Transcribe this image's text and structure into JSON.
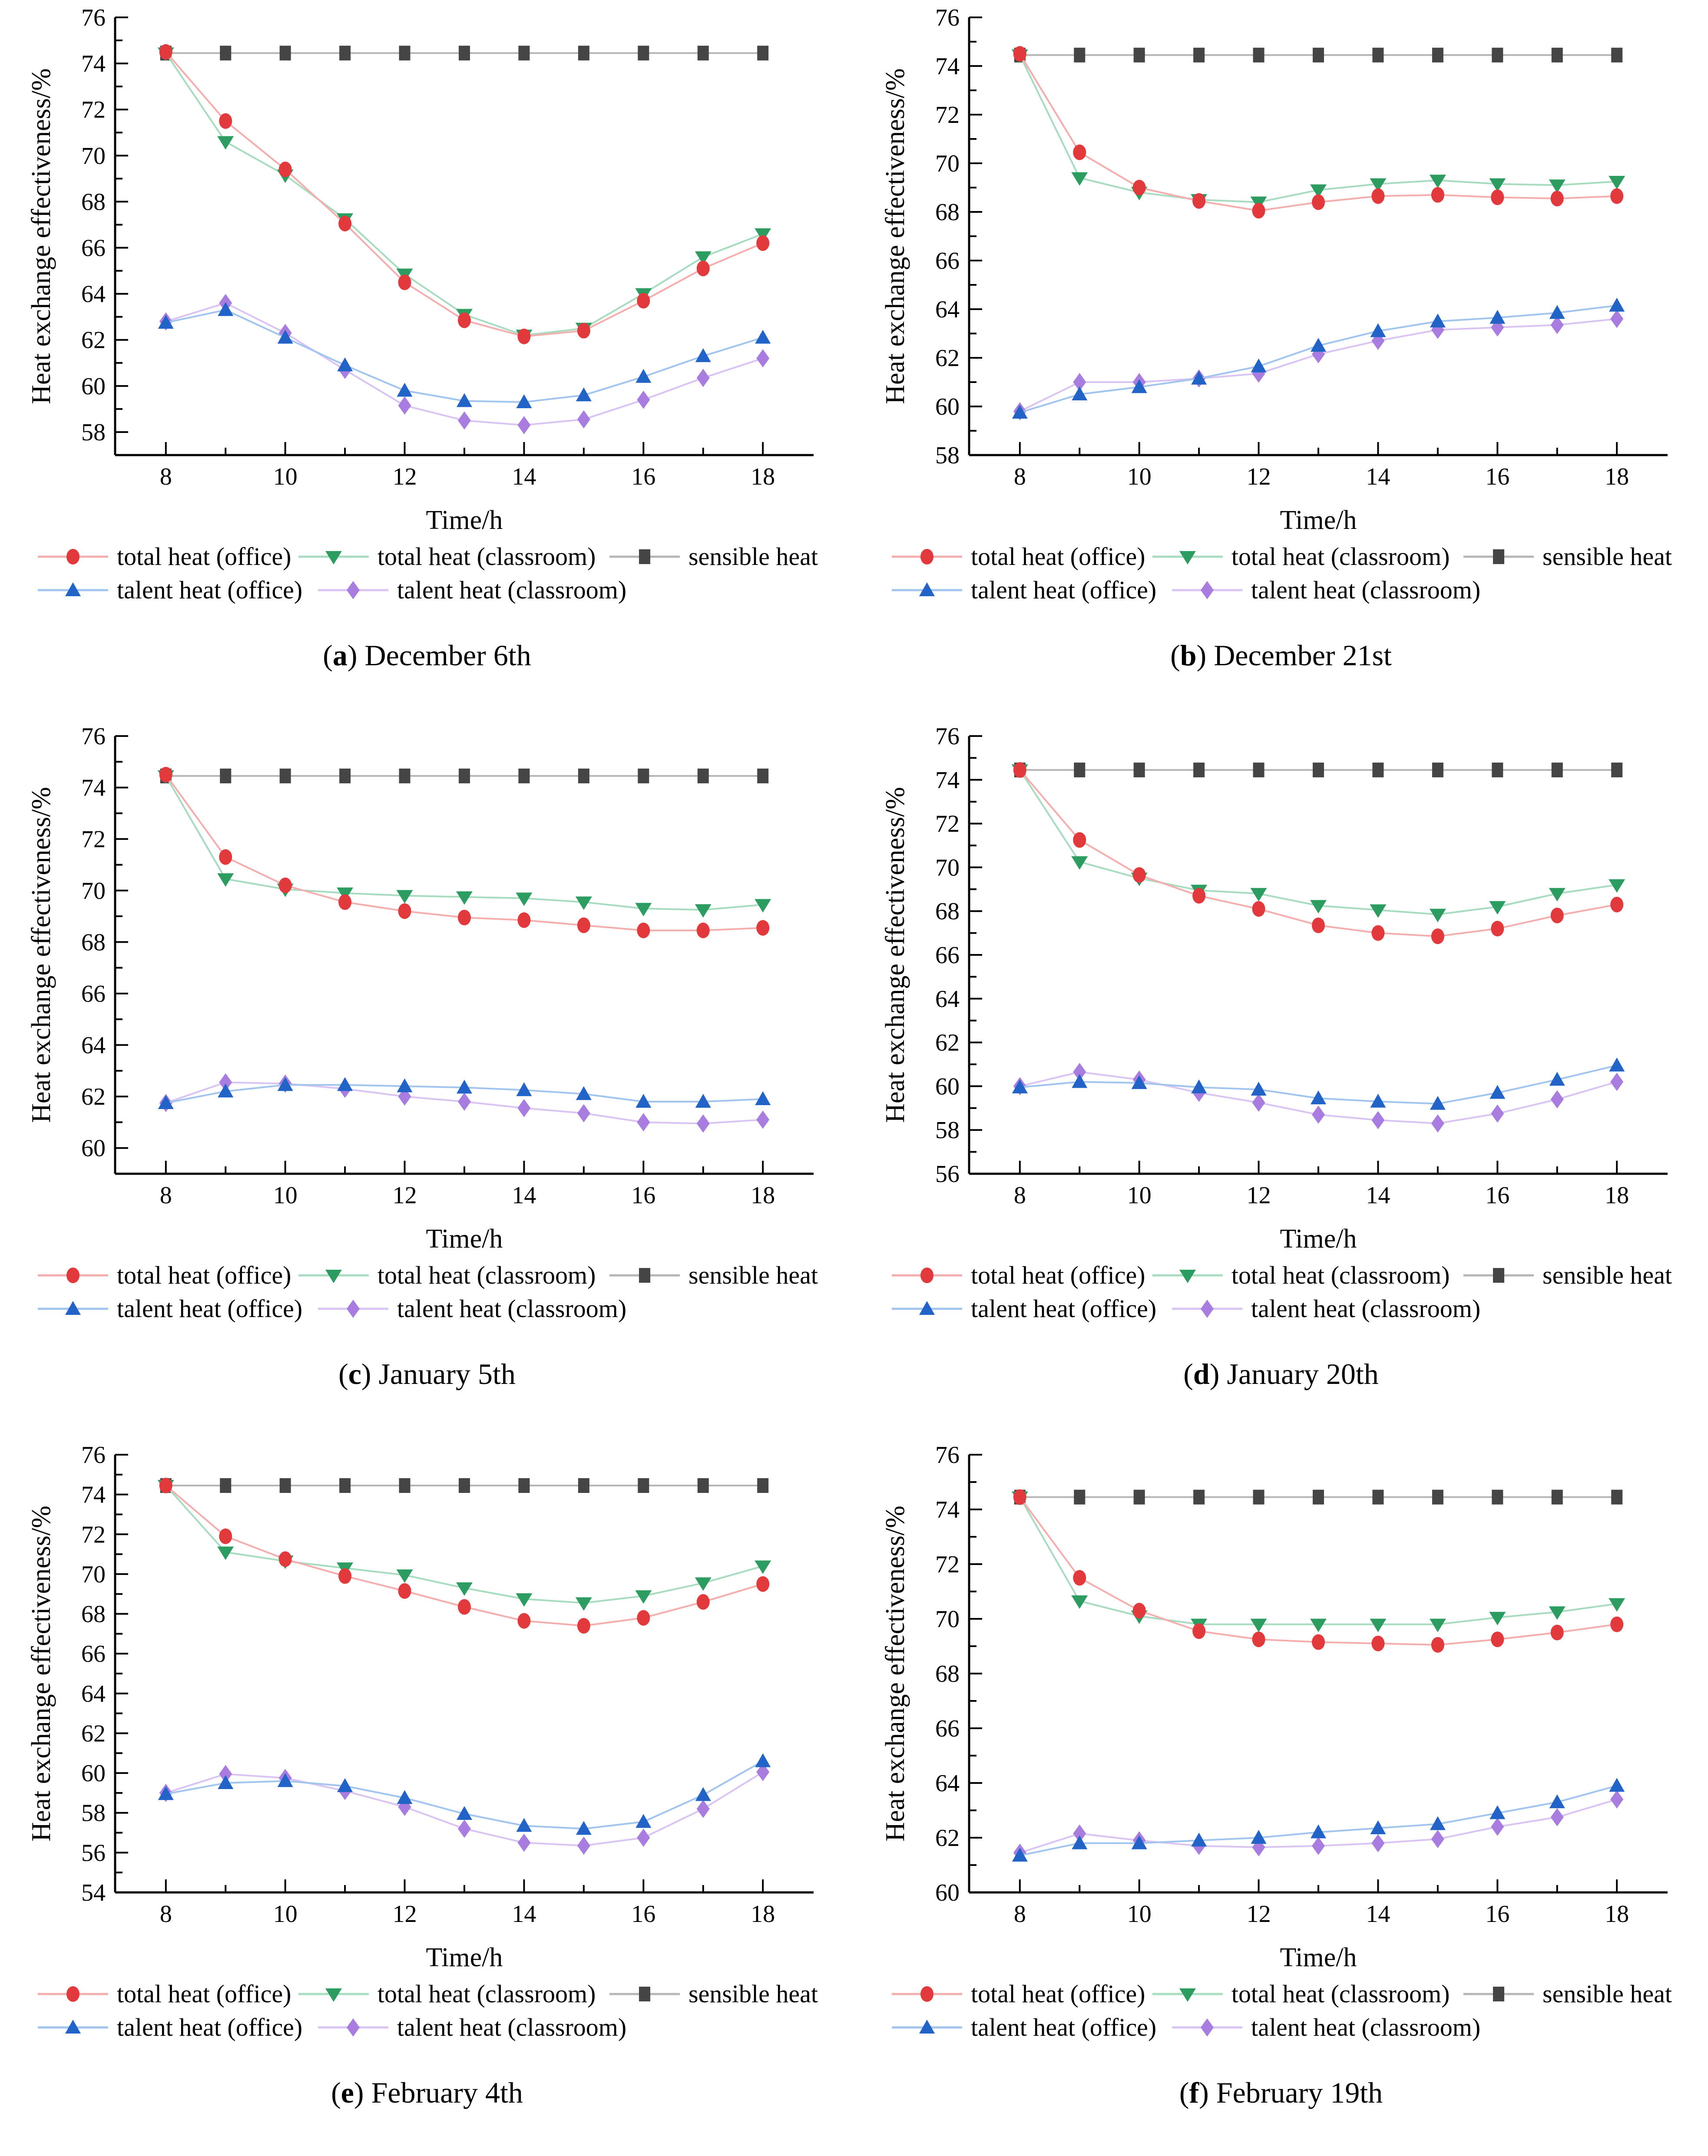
{
  "figure": {
    "xlabel": "Time/h",
    "ylabel": "Heat exchange effectiveness/%",
    "background": "#ffffff",
    "axis_color": "#000000",
    "legend_position": "below-each-chart",
    "legend": [
      {
        "label": "total heat (office)",
        "marker": "circle",
        "marker_color": "#e23a3c",
        "line_color": "#f5aeae"
      },
      {
        "label": "total heat (classroom)",
        "marker": "triangle-down",
        "marker_color": "#2c9c60",
        "line_color": "#a8dcc0"
      },
      {
        "label": "sensible heat",
        "marker": "square",
        "marker_color": "#454545",
        "line_color": "#b5b5b5"
      },
      {
        "label": "talent heat (office)",
        "marker": "triangle-up",
        "marker_color": "#2263c8",
        "line_color": "#a2c5ef"
      },
      {
        "label": "talent heat (classroom)",
        "marker": "diamond",
        "marker_color": "#a97ce0",
        "line_color": "#d9c4f4"
      }
    ]
  },
  "chart_data": [
    {
      "type": "line",
      "caption_letter": "a",
      "caption": "December 6th",
      "xlabel": "Time/h",
      "ylabel": "Heat exchange effectiveness/%",
      "x": [
        8,
        9,
        10,
        11,
        12,
        13,
        14,
        15,
        16,
        17,
        18
      ],
      "xticks": [
        8,
        10,
        12,
        14,
        16,
        18
      ],
      "ylim": [
        57,
        76
      ],
      "grid": false,
      "series": [
        {
          "name": "total heat (office)",
          "values": [
            74.5,
            71.5,
            69.4,
            67.05,
            64.5,
            62.85,
            62.15,
            62.4,
            63.7,
            65.1,
            66.2
          ]
        },
        {
          "name": "total heat (classroom)",
          "values": [
            74.45,
            70.6,
            69.15,
            67.25,
            64.85,
            63.1,
            62.2,
            62.5,
            64.0,
            65.6,
            66.6
          ]
        },
        {
          "name": "sensible heat",
          "values": [
            74.45,
            74.45,
            74.45,
            74.45,
            74.45,
            74.45,
            74.45,
            74.45,
            74.45,
            74.45,
            74.45
          ]
        },
        {
          "name": "talent heat (office)",
          "values": [
            62.75,
            63.3,
            62.1,
            60.9,
            59.8,
            59.35,
            59.3,
            59.6,
            60.4,
            61.3,
            62.1
          ]
        },
        {
          "name": "talent heat (classroom)",
          "values": [
            62.8,
            63.6,
            62.3,
            60.7,
            59.15,
            58.5,
            58.3,
            58.55,
            59.4,
            60.35,
            61.2
          ]
        }
      ]
    },
    {
      "type": "line",
      "caption_letter": "b",
      "caption": "December 21st",
      "xlabel": "Time/h",
      "ylabel": "Heat exchange effectiveness/%",
      "x": [
        8,
        9,
        10,
        11,
        12,
        13,
        14,
        15,
        16,
        17,
        18
      ],
      "xticks": [
        8,
        10,
        12,
        14,
        16,
        18
      ],
      "ylim": [
        58,
        76
      ],
      "grid": false,
      "series": [
        {
          "name": "total heat (office)",
          "values": [
            74.5,
            70.45,
            69.0,
            68.45,
            68.05,
            68.4,
            68.65,
            68.7,
            68.6,
            68.55,
            68.65
          ]
        },
        {
          "name": "total heat (classroom)",
          "values": [
            74.45,
            69.4,
            68.8,
            68.5,
            68.4,
            68.9,
            69.15,
            69.3,
            69.15,
            69.1,
            69.25
          ]
        },
        {
          "name": "sensible heat",
          "values": [
            74.45,
            74.45,
            74.45,
            74.45,
            74.45,
            74.45,
            74.45,
            74.45,
            74.45,
            74.45,
            74.45
          ]
        },
        {
          "name": "talent heat (office)",
          "values": [
            59.75,
            60.5,
            60.8,
            61.15,
            61.65,
            62.5,
            63.1,
            63.5,
            63.65,
            63.85,
            64.15
          ]
        },
        {
          "name": "talent heat (classroom)",
          "values": [
            59.8,
            61.0,
            61.0,
            61.15,
            61.35,
            62.15,
            62.7,
            63.15,
            63.25,
            63.35,
            63.6
          ]
        }
      ]
    },
    {
      "type": "line",
      "caption_letter": "c",
      "caption": "January 5th",
      "xlabel": "Time/h",
      "ylabel": "Heat exchange effectiveness/%",
      "x": [
        8,
        9,
        10,
        11,
        12,
        13,
        14,
        15,
        16,
        17,
        18
      ],
      "xticks": [
        8,
        10,
        12,
        14,
        16,
        18
      ],
      "ylim": [
        59,
        76
      ],
      "grid": false,
      "series": [
        {
          "name": "total heat (office)",
          "values": [
            74.5,
            71.3,
            70.2,
            69.55,
            69.2,
            68.95,
            68.85,
            68.65,
            68.45,
            68.45,
            68.55
          ]
        },
        {
          "name": "total heat (classroom)",
          "values": [
            74.45,
            70.45,
            70.05,
            69.9,
            69.8,
            69.75,
            69.7,
            69.55,
            69.3,
            69.25,
            69.45
          ]
        },
        {
          "name": "sensible heat",
          "values": [
            74.45,
            74.45,
            74.45,
            74.45,
            74.45,
            74.45,
            74.45,
            74.45,
            74.45,
            74.45,
            74.45
          ]
        },
        {
          "name": "talent heat (office)",
          "values": [
            61.75,
            62.2,
            62.45,
            62.45,
            62.4,
            62.35,
            62.25,
            62.1,
            61.8,
            61.8,
            61.9
          ]
        },
        {
          "name": "talent heat (classroom)",
          "values": [
            61.75,
            62.55,
            62.5,
            62.3,
            62.0,
            61.8,
            61.55,
            61.35,
            61.0,
            60.95,
            61.1
          ]
        }
      ]
    },
    {
      "type": "line",
      "caption_letter": "d",
      "caption": "January 20th",
      "xlabel": "Time/h",
      "ylabel": "Heat exchange effectiveness/%",
      "x": [
        8,
        9,
        10,
        11,
        12,
        13,
        14,
        15,
        16,
        17,
        18
      ],
      "xticks": [
        8,
        10,
        12,
        14,
        16,
        18
      ],
      "ylim": [
        56,
        76
      ],
      "grid": false,
      "series": [
        {
          "name": "total heat (office)",
          "values": [
            74.45,
            71.25,
            69.65,
            68.7,
            68.1,
            67.35,
            67.0,
            66.85,
            67.2,
            67.8,
            68.3
          ]
        },
        {
          "name": "total heat (classroom)",
          "values": [
            74.45,
            70.25,
            69.5,
            68.95,
            68.8,
            68.25,
            68.05,
            67.85,
            68.2,
            68.8,
            69.2
          ]
        },
        {
          "name": "sensible heat",
          "values": [
            74.45,
            74.45,
            74.45,
            74.45,
            74.45,
            74.45,
            74.45,
            74.45,
            74.45,
            74.45,
            74.45
          ]
        },
        {
          "name": "talent heat (office)",
          "values": [
            59.95,
            60.2,
            60.15,
            59.95,
            59.85,
            59.45,
            59.3,
            59.2,
            59.7,
            60.3,
            60.95
          ]
        },
        {
          "name": "talent heat (classroom)",
          "values": [
            60.0,
            60.65,
            60.3,
            59.7,
            59.25,
            58.7,
            58.45,
            58.3,
            58.75,
            59.4,
            60.2
          ]
        }
      ]
    },
    {
      "type": "line",
      "caption_letter": "e",
      "caption": "February 4th",
      "xlabel": "Time/h",
      "ylabel": "Heat exchange effectiveness/%",
      "x": [
        8,
        9,
        10,
        11,
        12,
        13,
        14,
        15,
        16,
        17,
        18
      ],
      "xticks": [
        8,
        10,
        12,
        14,
        16,
        18
      ],
      "ylim": [
        54,
        76
      ],
      "grid": false,
      "series": [
        {
          "name": "total heat (office)",
          "values": [
            74.45,
            71.9,
            70.75,
            69.9,
            69.15,
            68.35,
            67.65,
            67.4,
            67.8,
            68.6,
            69.5
          ]
        },
        {
          "name": "total heat (classroom)",
          "values": [
            74.45,
            71.1,
            70.65,
            70.3,
            69.95,
            69.3,
            68.75,
            68.55,
            68.9,
            69.55,
            70.4
          ]
        },
        {
          "name": "sensible heat",
          "values": [
            74.45,
            74.45,
            74.45,
            74.45,
            74.45,
            74.45,
            74.45,
            74.45,
            74.45,
            74.45,
            74.45
          ]
        },
        {
          "name": "talent heat (office)",
          "values": [
            58.95,
            59.5,
            59.6,
            59.35,
            58.75,
            57.95,
            57.35,
            57.2,
            57.55,
            58.9,
            60.6
          ]
        },
        {
          "name": "talent heat (classroom)",
          "values": [
            59.0,
            59.95,
            59.75,
            59.1,
            58.3,
            57.2,
            56.5,
            56.35,
            56.75,
            58.2,
            60.05
          ]
        }
      ]
    },
    {
      "type": "line",
      "caption_letter": "f",
      "caption": "February 19th",
      "xlabel": "Time/h",
      "ylabel": "Heat exchange effectiveness/%",
      "x": [
        8,
        9,
        10,
        11,
        12,
        13,
        14,
        15,
        16,
        17,
        18
      ],
      "xticks": [
        8,
        10,
        12,
        14,
        16,
        18
      ],
      "ylim": [
        60,
        76
      ],
      "grid": false,
      "series": [
        {
          "name": "total heat (office)",
          "values": [
            74.45,
            71.5,
            70.3,
            69.55,
            69.25,
            69.15,
            69.1,
            69.05,
            69.25,
            69.5,
            69.8
          ]
        },
        {
          "name": "total heat (classroom)",
          "values": [
            74.45,
            70.65,
            70.1,
            69.8,
            69.8,
            69.8,
            69.8,
            69.8,
            70.05,
            70.25,
            70.55
          ]
        },
        {
          "name": "sensible heat",
          "values": [
            74.45,
            74.45,
            74.45,
            74.45,
            74.45,
            74.45,
            74.45,
            74.45,
            74.45,
            74.45,
            74.45
          ]
        },
        {
          "name": "talent heat (office)",
          "values": [
            61.35,
            61.8,
            61.8,
            61.9,
            62.0,
            62.2,
            62.35,
            62.5,
            62.9,
            63.3,
            63.9
          ]
        },
        {
          "name": "talent heat (classroom)",
          "values": [
            61.45,
            62.15,
            61.9,
            61.7,
            61.65,
            61.7,
            61.8,
            61.95,
            62.4,
            62.75,
            63.4
          ]
        }
      ]
    }
  ]
}
